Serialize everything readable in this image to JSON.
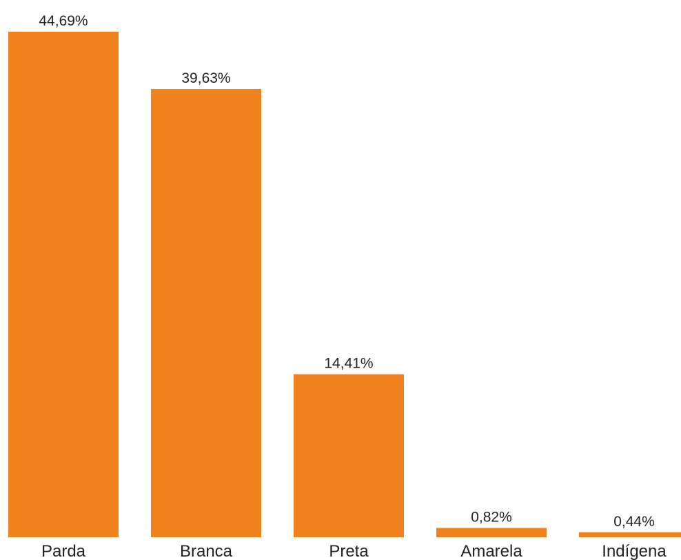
{
  "chart_data": {
    "type": "bar",
    "title": "",
    "xlabel": "",
    "ylabel": "",
    "categories": [
      "Parda",
      "Branca",
      "Preta",
      "Amarela",
      "Indígena"
    ],
    "values": [
      44.69,
      39.63,
      14.41,
      0.82,
      0.44
    ],
    "data_labels": [
      "44,69%",
      "39,63%",
      "14,41%",
      "0,82%",
      "0,44%"
    ],
    "ylim": [
      0,
      44.69
    ],
    "grid": false,
    "legend": "none",
    "bar_color": "#F0821E",
    "text_color": "#222222"
  }
}
